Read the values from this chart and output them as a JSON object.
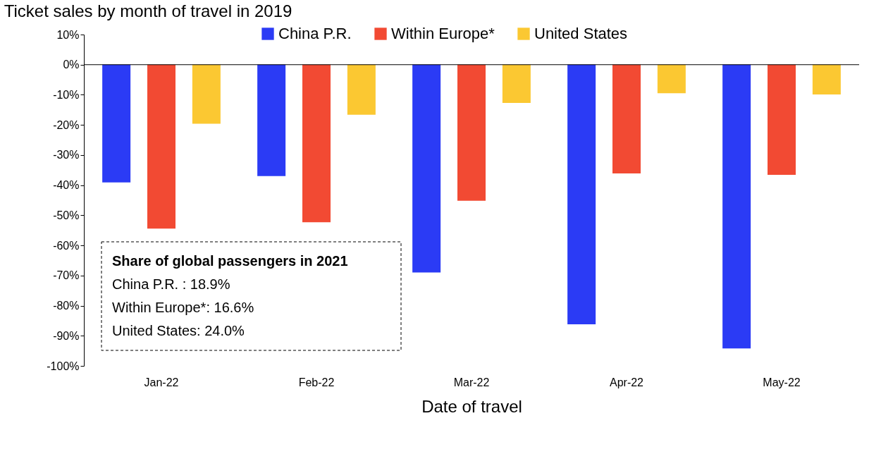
{
  "chart_data": {
    "type": "bar",
    "title": "Ticket sales by month of travel in 2019",
    "xlabel": "Date of travel",
    "categories": [
      "Jan-22",
      "Feb-22",
      "Mar-22",
      "Apr-22",
      "May-22"
    ],
    "series": [
      {
        "name": "China P.R.",
        "color": "#2b3bf5",
        "values": [
          -39.1,
          -37.0,
          -69.0,
          -86.2,
          -94.2
        ]
      },
      {
        "name": "Within Europe*",
        "color": "#f24a33",
        "values": [
          -54.4,
          -52.3,
          -45.2,
          -36.1,
          -36.6
        ]
      },
      {
        "name": "United States",
        "color": "#fbc832",
        "values": [
          -19.6,
          -16.6,
          -12.7,
          -9.5,
          -9.9
        ]
      }
    ],
    "ylim": [
      -100,
      10
    ],
    "yticks": [
      {
        "value": 10,
        "label": "10%"
      },
      {
        "value": 0,
        "label": "0%"
      },
      {
        "value": -10,
        "label": "-10%"
      },
      {
        "value": -20,
        "label": "-20%"
      },
      {
        "value": -30,
        "label": "-30%"
      },
      {
        "value": -40,
        "label": "-40%"
      },
      {
        "value": -50,
        "label": "-50%"
      },
      {
        "value": -60,
        "label": "-60%"
      },
      {
        "value": -70,
        "label": "-70%"
      },
      {
        "value": -80,
        "label": "-80%"
      },
      {
        "value": -90,
        "label": "-90%"
      },
      {
        "value": -100,
        "label": "-100%"
      }
    ],
    "annotations": [
      "Share of global passengers in 2021",
      "China P.R. : 18.9%",
      "Within Europe*: 16.6%",
      "United States: 24.0%"
    ],
    "ref_lines": [
      {
        "axis": "y",
        "value": 0,
        "color": "#000000"
      }
    ],
    "legend": "top",
    "grid": false
  }
}
